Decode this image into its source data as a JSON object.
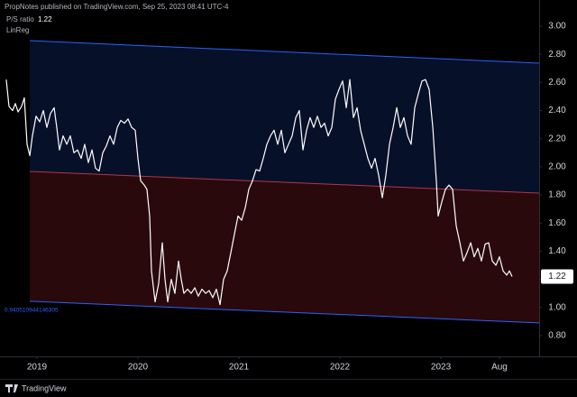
{
  "header": {
    "publisher": "PropNotes published on TradingView.com, Sep 25, 2023 08:41 UTC-4"
  },
  "footer": {
    "brand": "TradingView"
  },
  "chart_data": {
    "type": "line",
    "indicator": "LinReg",
    "xlim": [
      2018.634,
      2023.973
    ],
    "ylim": [
      0.652,
      3.186
    ],
    "xticks": [
      2019,
      2020,
      2021,
      2022,
      2023,
      {
        "value": 2023.58,
        "label": "Aug"
      }
    ],
    "yticks": [
      {
        "value": 3,
        "label": "3.00"
      },
      {
        "value": 2.8,
        "label": "2.80"
      },
      {
        "value": 2.6,
        "label": "2.60"
      },
      {
        "value": 2.4,
        "label": "2.40"
      },
      {
        "value": 2.2,
        "label": "2.20"
      },
      {
        "value": 2,
        "label": "2.00"
      },
      {
        "value": 1.8,
        "label": "1.80"
      },
      {
        "value": 1.6,
        "label": "1.60"
      },
      {
        "value": 1.4,
        "label": "1.40"
      },
      {
        "value": 1.2,
        "label": "1.20"
      },
      {
        "value": 1,
        "label": "1.00"
      },
      {
        "value": 0.8,
        "label": "0.80"
      }
    ],
    "x": [
      2018.696,
      2018.723,
      2018.759,
      2018.786,
      2018.813,
      2018.848,
      2018.875,
      2018.902,
      2018.929,
      2018.955,
      2018.991,
      2019.027,
      2019.063,
      2019.098,
      2019.134,
      2019.17,
      2019.196,
      2019.223,
      2019.259,
      2019.295,
      2019.33,
      2019.366,
      2019.402,
      2019.438,
      2019.473,
      2019.509,
      2019.545,
      2019.58,
      2019.616,
      2019.652,
      2019.688,
      2019.723,
      2019.759,
      2019.795,
      2019.83,
      2019.866,
      2019.902,
      2019.938,
      2019.973,
      2020.0,
      2020.027,
      2020.063,
      2020.089,
      2020.116,
      2020.134,
      2020.17,
      2020.205,
      2020.241,
      2020.268,
      2020.295,
      2020.33,
      2020.366,
      2020.402,
      2020.429,
      2020.455,
      2020.491,
      2020.527,
      2020.563,
      2020.598,
      2020.634,
      2020.67,
      2020.705,
      2020.741,
      2020.777,
      2020.813,
      2020.848,
      2020.884,
      2020.92,
      2020.955,
      2020.991,
      2021.027,
      2021.063,
      2021.098,
      2021.134,
      2021.17,
      2021.205,
      2021.241,
      2021.277,
      2021.313,
      2021.348,
      2021.384,
      2021.42,
      2021.455,
      2021.491,
      2021.527,
      2021.563,
      2021.598,
      2021.634,
      2021.67,
      2021.705,
      2021.741,
      2021.777,
      2021.813,
      2021.848,
      2021.884,
      2021.92,
      2021.955,
      2021.991,
      2022.027,
      2022.063,
      2022.098,
      2022.134,
      2022.17,
      2022.205,
      2022.241,
      2022.277,
      2022.313,
      2022.348,
      2022.384,
      2022.42,
      2022.455,
      2022.491,
      2022.527,
      2022.563,
      2022.598,
      2022.634,
      2022.67,
      2022.705,
      2022.741,
      2022.777,
      2022.813,
      2022.848,
      2022.884,
      2022.92,
      2022.955,
      2022.973,
      2023.009,
      2023.045,
      2023.08,
      2023.116,
      2023.152,
      2023.188,
      2023.223,
      2023.259,
      2023.295,
      2023.33,
      2023.366,
      2023.402,
      2023.438,
      2023.473,
      2023.509,
      2023.545,
      2023.58,
      2023.616,
      2023.652,
      2023.679,
      2023.705
    ],
    "series": [
      {
        "name": "P/S ratio",
        "color": "#ffffff",
        "values": [
          2.62,
          2.43,
          2.4,
          2.45,
          2.39,
          2.43,
          2.49,
          2.16,
          2.08,
          2.22,
          2.36,
          2.32,
          2.4,
          2.28,
          2.38,
          2.42,
          2.28,
          2.12,
          2.22,
          2.16,
          2.22,
          2.1,
          2.12,
          2.06,
          2.16,
          2.03,
          2.12,
          1.99,
          1.97,
          2.1,
          2.15,
          2.22,
          2.16,
          2.28,
          2.33,
          2.31,
          2.34,
          2.28,
          2.26,
          2.06,
          1.9,
          1.87,
          1.84,
          1.65,
          1.26,
          1.04,
          1.17,
          1.46,
          1.2,
          1.04,
          1.2,
          1.1,
          1.33,
          1.2,
          1.1,
          1.13,
          1.1,
          1.14,
          1.08,
          1.13,
          1.1,
          1.12,
          1.07,
          1.13,
          1.02,
          1.2,
          1.26,
          1.39,
          1.52,
          1.65,
          1.62,
          1.71,
          1.84,
          1.9,
          1.98,
          1.97,
          2.06,
          2.16,
          2.22,
          2.26,
          2.16,
          2.26,
          2.1,
          2.16,
          2.22,
          2.35,
          2.4,
          2.12,
          2.26,
          2.35,
          2.28,
          2.36,
          2.28,
          2.31,
          2.22,
          2.28,
          2.48,
          2.55,
          2.61,
          2.42,
          2.62,
          2.35,
          2.42,
          2.26,
          2.16,
          2.06,
          1.99,
          2.06,
          1.94,
          1.78,
          1.94,
          2.16,
          2.28,
          2.42,
          2.28,
          2.35,
          2.22,
          2.16,
          2.42,
          2.52,
          2.61,
          2.62,
          2.55,
          2.28,
          1.9,
          1.65,
          1.75,
          1.84,
          1.87,
          1.84,
          1.58,
          1.46,
          1.33,
          1.39,
          1.46,
          1.36,
          1.42,
          1.33,
          1.45,
          1.46,
          1.33,
          1.3,
          1.36,
          1.26,
          1.23,
          1.26,
          1.22
        ]
      }
    ],
    "regression": {
      "x": [
        2018.929,
        2023.973
      ],
      "upper": [
        2.897,
        2.737
      ],
      "middle": [
        1.967,
        1.813
      ],
      "lower": [
        1.044,
        0.89
      ],
      "band_color": "#2962ff",
      "middle_color": "#b2374a",
      "upper_fill": "rgba(41,98,255,0.16)",
      "lower_fill": "rgba(242,54,69,0.17)",
      "lower_label": "0.940510944146305"
    }
  }
}
